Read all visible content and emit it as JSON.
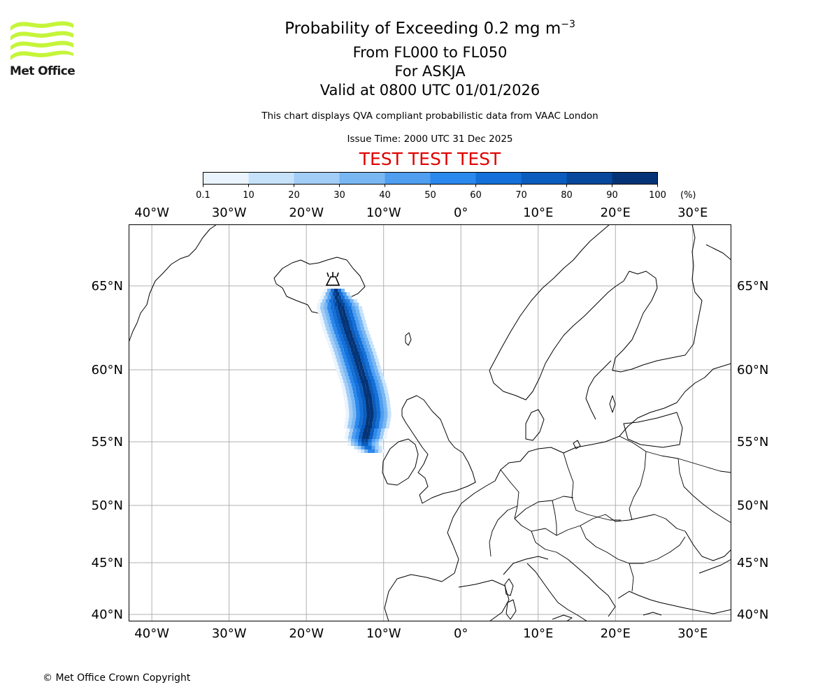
{
  "header": {
    "title_main": "Probability of Exceeding 0.2 mg m",
    "title_exp": "−3",
    "levels": "From FL000 to FL050",
    "volcano": "For ASKJA",
    "valid": "Valid at 0800 UTC 01/01/2026",
    "note": "This chart displays QVA compliant probabilistic data from VAAC London",
    "issue": "Issue Time: 2000 UTC 31 Dec 2025",
    "test_banner": "TEST TEST TEST",
    "test_color": "#e00000"
  },
  "logo": {
    "text": "Met Office",
    "color": "#c5f53a",
    "icon": "met-office-waves-logo"
  },
  "colorbar": {
    "ticks": [
      "0.1",
      "10",
      "20",
      "30",
      "40",
      "50",
      "60",
      "70",
      "80",
      "90",
      "100"
    ],
    "unit": "(%)",
    "colors": [
      "#eaf4fe",
      "#c6e2fb",
      "#a1cdf7",
      "#79b7f3",
      "#4f9ef0",
      "#2b88ec",
      "#1470d8",
      "#0a5cbe",
      "#07489c",
      "#053476"
    ]
  },
  "map": {
    "lon_labels": [
      "40°W",
      "30°W",
      "20°W",
      "10°W",
      "0°",
      "10°E",
      "20°E",
      "30°E"
    ],
    "lat_labels": [
      "65°N",
      "60°N",
      "55°N",
      "50°N",
      "45°N",
      "40°N"
    ],
    "lon_range": [
      -43,
      35
    ],
    "lat_range": [
      39.5,
      68.5
    ],
    "volcano_marker": "volcano-icon",
    "volcano_position": {
      "lon": -16.8,
      "lat": 65.05
    }
  },
  "footer": {
    "copyright": "© Met Office Crown Copyright"
  }
}
